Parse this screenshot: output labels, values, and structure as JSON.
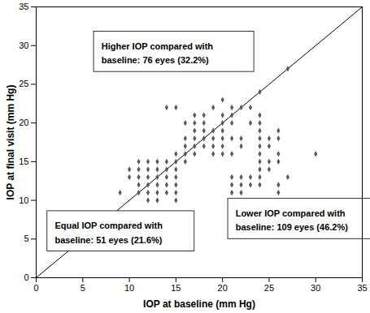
{
  "chart_data": {
    "type": "scatter",
    "x_label": "IOP at baseline (mm Hg)",
    "y_label": "IOP at final visit (mm Hg)",
    "xlim": [
      0,
      35
    ],
    "ylim": [
      0,
      35
    ],
    "xticks": [
      0,
      5,
      10,
      15,
      20,
      25,
      30,
      35
    ],
    "yticks": [
      0,
      5,
      10,
      15,
      20,
      25,
      30,
      35
    ],
    "color": "#595959",
    "marker": "diamond",
    "grid": false,
    "x": [
      9,
      10,
      10,
      11,
      11,
      11,
      11,
      11,
      12,
      12,
      12,
      12,
      12,
      12,
      13,
      13,
      13,
      13,
      13,
      13,
      14,
      14,
      14,
      14,
      14,
      14,
      15,
      15,
      15,
      15,
      15,
      15,
      15,
      15,
      16,
      16,
      16,
      16,
      16,
      17,
      17,
      17,
      17,
      17,
      17,
      18,
      18,
      18,
      18,
      18,
      19,
      19,
      19,
      19,
      19,
      20,
      20,
      20,
      20,
      20,
      20,
      20,
      21,
      21,
      21,
      21,
      21,
      21,
      21,
      21,
      22,
      22,
      22,
      22,
      22,
      22,
      23,
      23,
      23,
      23,
      24,
      24,
      24,
      24,
      24,
      24,
      24,
      24,
      24,
      24,
      24,
      25,
      25,
      25,
      25,
      26,
      26,
      26,
      26,
      26,
      26,
      27,
      27,
      30
    ],
    "y": [
      11,
      13,
      14,
      11,
      12,
      13,
      14,
      15,
      10,
      11,
      12,
      13,
      14,
      15,
      10,
      11,
      12,
      13,
      14,
      15,
      11,
      12,
      13,
      14,
      15,
      22,
      10,
      11,
      12,
      13,
      14,
      15,
      16,
      22,
      15,
      16,
      17,
      18,
      20,
      16,
      17,
      18,
      19,
      20,
      21,
      17,
      18,
      19,
      20,
      21,
      16,
      17,
      18,
      19,
      22,
      16,
      17,
      18,
      19,
      20,
      21,
      23,
      11,
      12,
      13,
      16,
      18,
      20,
      21,
      22,
      11,
      12,
      13,
      17,
      18,
      22,
      12,
      13,
      20,
      22,
      12,
      13,
      14,
      15,
      16,
      17,
      18,
      19,
      20,
      21,
      24,
      14,
      15,
      17,
      18,
      11,
      12,
      15,
      16,
      18,
      19,
      13,
      27,
      16
    ],
    "annotations": [
      {
        "text": "Higher IOP compared with\nbaseline: 76 eyes (32.2%)"
      },
      {
        "text": "Equal IOP compared with\nbaseline: 51 eyes (21.6%)"
      },
      {
        "text": "Lower IOP compared with\nbaseline: 109 eyes (46.2%)"
      }
    ]
  }
}
